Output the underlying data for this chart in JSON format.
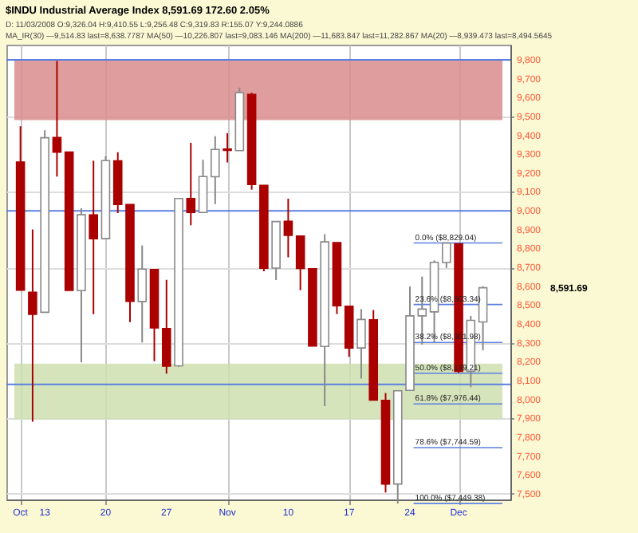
{
  "chart_data": {
    "type": "candlestick",
    "title": "$INDU Industrial Average Index 8,591.69 172.60 2.05%",
    "subtitle": "D: 11/03/2008 O:9,326.04 H:9,410.55 L:9,256.48 C:9,319.83 R:155.07 Y:9,244.0886",
    "annotations": [
      "MA_IR(30) —9,514.83 last=8,638.7787 MA(50) —10,226.807 last=9,083.146 MA(200) —11,683.847 last=11,282.867 MA(20) —8,939.473 last=8,494.5645",
      "8,591.69"
    ],
    "categories": [
      "Oct",
      null,
      "13",
      null,
      null,
      null,
      null,
      "20",
      null,
      null,
      null,
      null,
      "27",
      null,
      null,
      null,
      null,
      "Nov",
      null,
      null,
      null,
      null,
      "10",
      null,
      null,
      null,
      null,
      "17",
      null,
      null,
      null,
      null,
      "24",
      null,
      null,
      null,
      "Dec",
      null,
      null
    ],
    "ohlc": [
      [
        9258,
        9448,
        8579,
        8579
      ],
      [
        8568,
        8901,
        7882,
        8451
      ],
      [
        8462,
        9427,
        8462,
        9387
      ],
      [
        9388,
        9794,
        9181,
        9310
      ],
      [
        9311,
        9311,
        8578,
        8578
      ],
      [
        8577,
        9013,
        8197,
        8979
      ],
      [
        8978,
        9265,
        8452,
        8852
      ],
      [
        8852,
        9289,
        8850,
        9266
      ],
      [
        9265,
        9310,
        8988,
        9034
      ],
      [
        9033,
        9033,
        8410,
        8520
      ],
      [
        8519,
        8816,
        8302,
        8691
      ],
      [
        8689,
        8689,
        8203,
        8379
      ],
      [
        8376,
        8634,
        8137,
        8176
      ],
      [
        8178,
        9065,
        8173,
        9065
      ],
      [
        9065,
        9360,
        8923,
        8991
      ],
      [
        8991,
        9270,
        8988,
        9181
      ],
      [
        9180,
        9395,
        9035,
        9325
      ],
      [
        9327,
        9411,
        9256,
        9320
      ],
      [
        9319,
        9653,
        9319,
        9625
      ],
      [
        9617,
        9625,
        9112,
        9139
      ],
      [
        9135,
        9135,
        8679,
        8695
      ],
      [
        8696,
        8943,
        8633,
        8943
      ],
      [
        8944,
        9064,
        8753,
        8870
      ],
      [
        8866,
        8866,
        8579,
        8694
      ],
      [
        8693,
        8693,
        8282,
        8283
      ],
      [
        8281,
        8876,
        7965,
        8835
      ],
      [
        8831,
        8831,
        8453,
        8497
      ],
      [
        8494,
        8497,
        8226,
        8273
      ],
      [
        8273,
        8479,
        8111,
        8424
      ],
      [
        8422,
        8474,
        7995,
        7997
      ],
      [
        7995,
        8034,
        7507,
        7552
      ],
      [
        7552,
        8049,
        7449,
        8046
      ],
      [
        8048,
        8599,
        8048,
        8443
      ],
      [
        8443,
        8651,
        8291,
        8479
      ],
      [
        8464,
        8737,
        8301,
        8727
      ],
      [
        8726,
        8831,
        8697,
        8829
      ],
      [
        8825,
        8825,
        8141,
        8149
      ],
      [
        8149,
        8443,
        8065,
        8419
      ],
      [
        8411,
        8600,
        8261,
        8592
      ]
    ],
    "colors": [
      "#aa0000",
      "#aa0000",
      "#ffffff",
      "#aa0000",
      "#aa0000",
      "#ffffff",
      "#aa0000",
      "#ffffff",
      "#aa0000",
      "#aa0000",
      "#ffffff",
      "#aa0000",
      "#aa0000",
      "#ffffff",
      "#aa0000",
      "#ffffff",
      "#ffffff",
      "#aa0000",
      "#ffffff",
      "#aa0000",
      "#aa0000",
      "#ffffff",
      "#aa0000",
      "#aa0000",
      "#aa0000",
      "#ffffff",
      "#aa0000",
      "#aa0000",
      "#ffffff",
      "#aa0000",
      "#aa0000",
      "#ffffff",
      "#ffffff",
      "#ffffff",
      "#ffffff",
      "#ffffff",
      "#aa0000",
      "#ffffff",
      "#ffffff"
    ],
    "ylim": [
      7470,
      9880
    ],
    "yticks": [
      {
        "value": 7500,
        "label": "7,500"
      },
      {
        "value": 7600,
        "label": "7,600"
      },
      {
        "value": 7700,
        "label": "7,700"
      },
      {
        "value": 7800,
        "label": "7,800"
      },
      {
        "value": 7900,
        "label": "7,900"
      },
      {
        "value": 8000,
        "label": "8,000"
      },
      {
        "value": 8100,
        "label": "8,100"
      },
      {
        "value": 8200,
        "label": "8,200"
      },
      {
        "value": 8300,
        "label": "8,300"
      },
      {
        "value": 8400,
        "label": "8,400"
      },
      {
        "value": 8500,
        "label": "8,500"
      },
      {
        "value": 8600,
        "label": "8,600"
      },
      {
        "value": 8700,
        "label": "8,700"
      },
      {
        "value": 8800,
        "label": "8,800"
      },
      {
        "value": 8900,
        "label": "8,900"
      },
      {
        "value": 9000,
        "label": "9,000"
      },
      {
        "value": 9100,
        "label": "9,100"
      },
      {
        "value": 9200,
        "label": "9,200"
      },
      {
        "value": 9300,
        "label": "9,300"
      },
      {
        "value": 9400,
        "label": "9,400"
      },
      {
        "value": 9500,
        "label": "9,500"
      },
      {
        "value": 9600,
        "label": "9,600"
      },
      {
        "value": 9700,
        "label": "9,700"
      },
      {
        "value": 9800,
        "label": "9,800"
      }
    ],
    "grid": true,
    "bands": [
      {
        "axis": "y",
        "from": 9480,
        "to": 9800,
        "color": "#d98c8c"
      },
      {
        "axis": "y",
        "from": 7895,
        "to": 8190,
        "color": "#cfdfb0"
      }
    ],
    "ref_lines": [
      {
        "axis": "y",
        "value": 9800,
        "color": "#5b7fe0"
      },
      {
        "axis": "y",
        "value": 9000,
        "color": "#5b7fe0"
      },
      {
        "axis": "y",
        "value": 8080,
        "color": "#5b7fe0"
      },
      {
        "axis": "y",
        "value": 8829.04,
        "label": "0.0% ($8,829.04)",
        "color": "#5b7fe0"
      },
      {
        "axis": "y",
        "value": 8503.34,
        "label": "23.6% ($8,503.34)",
        "color": "#5b7fe0"
      },
      {
        "axis": "y",
        "value": 8301.98,
        "label": "38.2% ($8,301.98)",
        "color": "#5b7fe0"
      },
      {
        "axis": "y",
        "value": 8139.21,
        "label": "50.0% ($8,139.21)",
        "color": "#5b7fe0"
      },
      {
        "axis": "y",
        "value": 7976.44,
        "label": "61.8% ($7,976.44)",
        "color": "#5b7fe0"
      },
      {
        "axis": "y",
        "value": 7744.59,
        "label": "78.6% ($7,744.59)",
        "color": "#5b7fe0"
      },
      {
        "axis": "y",
        "value": 7449.38,
        "label": "100.0% ($7,449.38)",
        "color": "#5b7fe0"
      }
    ]
  }
}
